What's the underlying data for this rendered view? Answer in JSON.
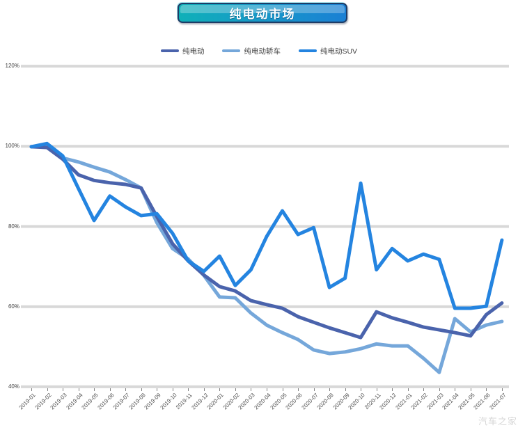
{
  "title": {
    "text": "纯电动市场"
  },
  "watermark": "汽车之家",
  "colors": {
    "badge_gradient_left": "#0fb0b8",
    "badge_gradient_right": "#1a80d4",
    "badge_border": "#1e3c66",
    "grid": "#d8d8d8",
    "axis_label": "#4a4a4a",
    "ev_total": "#4a63ac",
    "ev_sedan": "#75a7da",
    "ev_suv": "#2484e0",
    "watermark": "#d6d6d6"
  },
  "legend": [
    {
      "label": "纯电动",
      "color": "#4a63ac"
    },
    {
      "label": "纯电动轿车",
      "color": "#75a7da"
    },
    {
      "label": "纯电动SUV",
      "color": "#2484e0"
    }
  ],
  "chart_data": {
    "type": "line",
    "title": "纯电动市场",
    "xlabel": "",
    "ylabel": "",
    "grid": true,
    "legend_position": "top",
    "ylim": [
      40,
      130
    ],
    "y_ticks": [
      120,
      100,
      80,
      60,
      40
    ],
    "y_tick_labels": [
      "120%",
      "100%",
      "80%",
      "60%",
      "40%"
    ],
    "x": [
      "2019-01",
      "2019-02",
      "2019-03",
      "2019-04",
      "2019-05",
      "2019-06",
      "2019-07",
      "2019-08",
      "2019-09",
      "2019-10",
      "2019-11",
      "2019-12",
      "2020-01",
      "2020-02",
      "2020-03",
      "2020-04",
      "2020-05",
      "2020-06",
      "2020-07",
      "2020-08",
      "2020-09",
      "2020-10",
      "2020-11",
      "2020-12",
      "2021-01",
      "2021-02",
      "2021-03",
      "2021-04",
      "2021-05",
      "2021-06",
      "2021-07"
    ],
    "series": [
      {
        "name": "纯电动",
        "color": "#4a63ac",
        "values": [
          99.9,
          99.7,
          96.8,
          92.9,
          91.5,
          90.9,
          90.5,
          89.6,
          82.5,
          75.7,
          71.4,
          67.9,
          65.0,
          63.9,
          61.5,
          60.5,
          59.6,
          57.5,
          56.1,
          54.7,
          53.5,
          52.3,
          58.7,
          57.2,
          56.1,
          54.9,
          54.2,
          53.5,
          52.7,
          58.0,
          60.9
        ]
      },
      {
        "name": "纯电动轿车",
        "color": "#75a7da",
        "values": [
          99.9,
          99.9,
          97.1,
          96.1,
          94.8,
          93.6,
          91.7,
          89.6,
          81.0,
          74.5,
          71.9,
          67.8,
          62.4,
          62.2,
          58.4,
          55.4,
          53.5,
          51.8,
          49.2,
          48.3,
          48.7,
          49.5,
          50.7,
          50.2,
          50.2,
          47.1,
          43.6,
          57.0,
          53.7,
          55.4,
          56.3
        ]
      },
      {
        "name": "纯电动SUV",
        "color": "#2484e0",
        "values": [
          99.9,
          100.7,
          97.6,
          89.5,
          81.5,
          87.6,
          84.9,
          82.7,
          83.2,
          78.3,
          71.4,
          68.8,
          72.6,
          65.3,
          69.2,
          77.5,
          83.9,
          78.0,
          79.7,
          64.8,
          67.1,
          90.8,
          69.2,
          74.5,
          71.4,
          73.1,
          71.8,
          59.6,
          59.6,
          60.1,
          76.6
        ]
      }
    ]
  }
}
